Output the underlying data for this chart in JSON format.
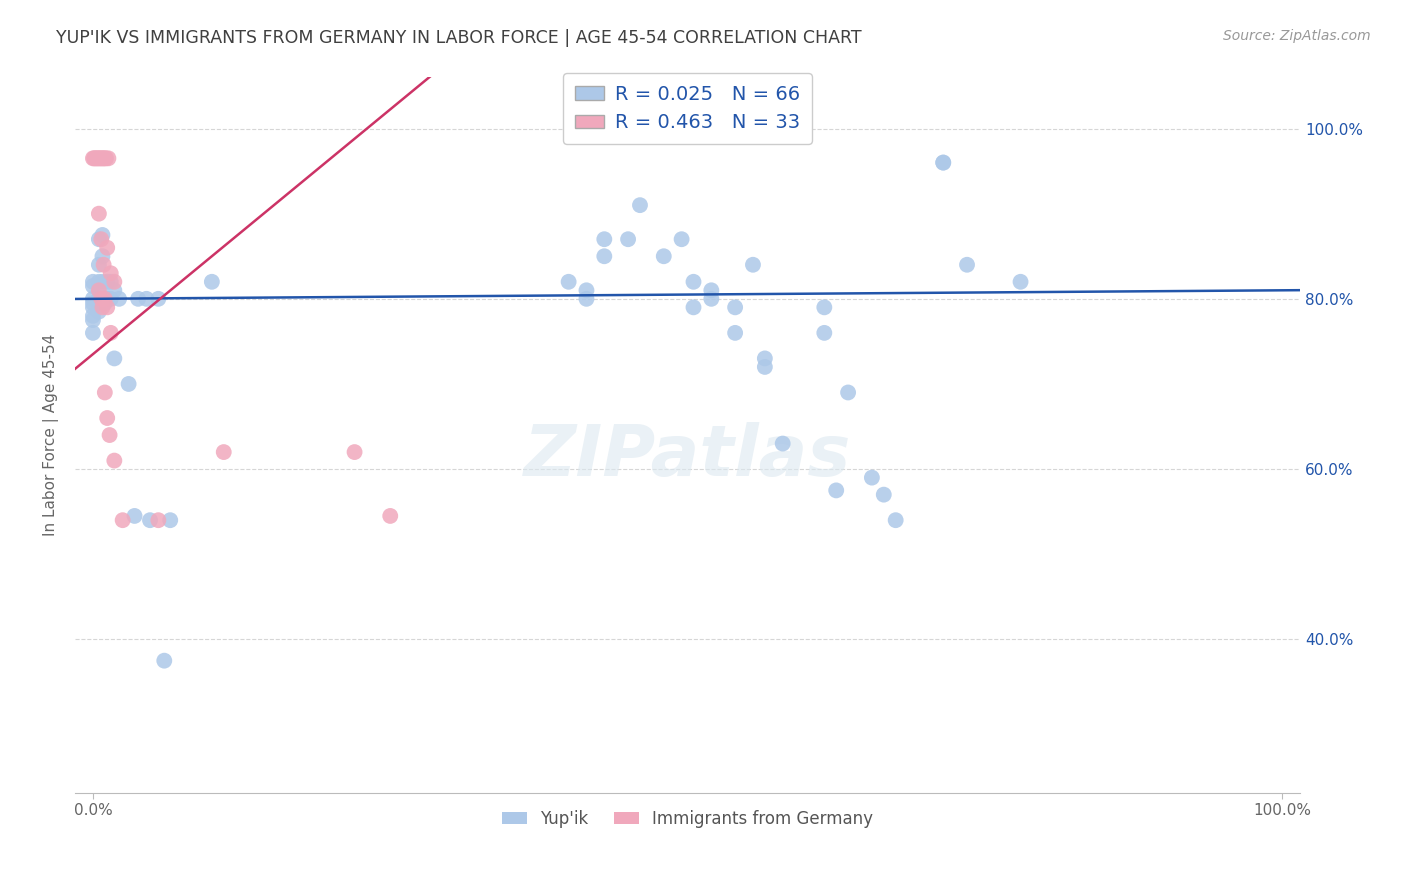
{
  "title": "YUP'IK VS IMMIGRANTS FROM GERMANY IN LABOR FORCE | AGE 45-54 CORRELATION CHART",
  "source": "Source: ZipAtlas.com",
  "ylabel": "In Labor Force | Age 45-54",
  "legend_label1": "Yup'ik",
  "legend_label2": "Immigrants from Germany",
  "R1": 0.025,
  "N1": 66,
  "R2": 0.463,
  "N2": 33,
  "color_blue": "#adc8e8",
  "color_pink": "#f0a8bc",
  "trend_color_blue": "#2255aa",
  "trend_color_pink": "#cc3366",
  "background_color": "#ffffff",
  "grid_color": "#cccccc",
  "title_color": "#404040",
  "text_color_blue": "#2255aa",
  "blue_points": [
    [
      0.0,
      0.82
    ],
    [
      0.0,
      0.815
    ],
    [
      0.0,
      0.8
    ],
    [
      0.0,
      0.795
    ],
    [
      0.0,
      0.79
    ],
    [
      0.0,
      0.78
    ],
    [
      0.0,
      0.775
    ],
    [
      0.0,
      0.76
    ],
    [
      0.005,
      0.87
    ],
    [
      0.005,
      0.84
    ],
    [
      0.005,
      0.82
    ],
    [
      0.005,
      0.81
    ],
    [
      0.005,
      0.8
    ],
    [
      0.005,
      0.795
    ],
    [
      0.005,
      0.785
    ],
    [
      0.008,
      0.875
    ],
    [
      0.008,
      0.85
    ],
    [
      0.008,
      0.82
    ],
    [
      0.01,
      0.8
    ],
    [
      0.01,
      0.8
    ],
    [
      0.01,
      0.795
    ],
    [
      0.012,
      0.82
    ],
    [
      0.012,
      0.8
    ],
    [
      0.015,
      0.82
    ],
    [
      0.015,
      0.8
    ],
    [
      0.018,
      0.73
    ],
    [
      0.018,
      0.81
    ],
    [
      0.022,
      0.8
    ],
    [
      0.03,
      0.7
    ],
    [
      0.035,
      0.545
    ],
    [
      0.038,
      0.8
    ],
    [
      0.045,
      0.8
    ],
    [
      0.048,
      0.54
    ],
    [
      0.055,
      0.8
    ],
    [
      0.06,
      0.375
    ],
    [
      0.065,
      0.54
    ],
    [
      0.1,
      0.82
    ],
    [
      0.4,
      0.82
    ],
    [
      0.415,
      0.81
    ],
    [
      0.415,
      0.8
    ],
    [
      0.43,
      0.87
    ],
    [
      0.43,
      0.85
    ],
    [
      0.45,
      0.87
    ],
    [
      0.46,
      0.91
    ],
    [
      0.48,
      0.85
    ],
    [
      0.495,
      0.87
    ],
    [
      0.505,
      0.82
    ],
    [
      0.505,
      0.79
    ],
    [
      0.52,
      0.81
    ],
    [
      0.52,
      0.8
    ],
    [
      0.54,
      0.79
    ],
    [
      0.54,
      0.76
    ],
    [
      0.555,
      0.84
    ],
    [
      0.565,
      0.73
    ],
    [
      0.565,
      0.72
    ],
    [
      0.58,
      0.63
    ],
    [
      0.615,
      0.79
    ],
    [
      0.615,
      0.76
    ],
    [
      0.625,
      0.575
    ],
    [
      0.635,
      0.69
    ],
    [
      0.655,
      0.59
    ],
    [
      0.665,
      0.57
    ],
    [
      0.675,
      0.54
    ],
    [
      0.715,
      0.96
    ],
    [
      0.715,
      0.96
    ],
    [
      0.735,
      0.84
    ],
    [
      0.78,
      0.82
    ]
  ],
  "pink_points": [
    [
      0.0,
      0.965
    ],
    [
      0.001,
      0.965
    ],
    [
      0.002,
      0.965
    ],
    [
      0.003,
      0.965
    ],
    [
      0.004,
      0.965
    ],
    [
      0.005,
      0.965
    ],
    [
      0.006,
      0.965
    ],
    [
      0.007,
      0.965
    ],
    [
      0.008,
      0.965
    ],
    [
      0.009,
      0.965
    ],
    [
      0.01,
      0.965
    ],
    [
      0.011,
      0.965
    ],
    [
      0.013,
      0.965
    ],
    [
      0.005,
      0.9
    ],
    [
      0.007,
      0.87
    ],
    [
      0.009,
      0.84
    ],
    [
      0.012,
      0.86
    ],
    [
      0.015,
      0.83
    ],
    [
      0.018,
      0.82
    ],
    [
      0.005,
      0.81
    ],
    [
      0.007,
      0.8
    ],
    [
      0.008,
      0.79
    ],
    [
      0.01,
      0.8
    ],
    [
      0.012,
      0.79
    ],
    [
      0.015,
      0.76
    ],
    [
      0.01,
      0.69
    ],
    [
      0.012,
      0.66
    ],
    [
      0.014,
      0.64
    ],
    [
      0.018,
      0.61
    ],
    [
      0.025,
      0.54
    ],
    [
      0.055,
      0.54
    ],
    [
      0.11,
      0.62
    ],
    [
      0.22,
      0.62
    ],
    [
      0.25,
      0.545
    ]
  ]
}
